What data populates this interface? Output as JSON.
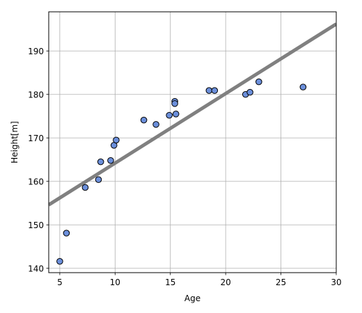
{
  "chart_data": {
    "type": "scatter",
    "title": "",
    "xlabel": "Age",
    "ylabel": "Height[m]",
    "xlim": [
      4,
      30
    ],
    "ylim": [
      139,
      199
    ],
    "xticks": [
      5,
      10,
      15,
      20,
      25,
      30
    ],
    "yticks": [
      140,
      150,
      160,
      170,
      180,
      190
    ],
    "grid": true,
    "series": [
      {
        "type": "scatter",
        "color": "#6b8fdb",
        "edge_color": "#000000",
        "points": [
          {
            "x": 5.0,
            "y": 141.6
          },
          {
            "x": 5.6,
            "y": 148.1
          },
          {
            "x": 7.3,
            "y": 158.6
          },
          {
            "x": 8.5,
            "y": 160.4
          },
          {
            "x": 8.7,
            "y": 164.5
          },
          {
            "x": 9.6,
            "y": 164.8
          },
          {
            "x": 9.9,
            "y": 168.3
          },
          {
            "x": 10.1,
            "y": 169.5
          },
          {
            "x": 12.6,
            "y": 174.1
          },
          {
            "x": 13.7,
            "y": 173.1
          },
          {
            "x": 14.9,
            "y": 175.2
          },
          {
            "x": 15.4,
            "y": 178.4
          },
          {
            "x": 15.4,
            "y": 177.9
          },
          {
            "x": 15.5,
            "y": 175.5
          },
          {
            "x": 18.5,
            "y": 180.9
          },
          {
            "x": 19.0,
            "y": 180.9
          },
          {
            "x": 21.8,
            "y": 180.0
          },
          {
            "x": 22.2,
            "y": 180.5
          },
          {
            "x": 23.0,
            "y": 182.9
          },
          {
            "x": 27.0,
            "y": 181.7
          }
        ]
      },
      {
        "type": "line",
        "color": "#808080",
        "points": [
          {
            "x": 4,
            "y": 154.6
          },
          {
            "x": 30,
            "y": 196.2
          }
        ]
      }
    ]
  }
}
